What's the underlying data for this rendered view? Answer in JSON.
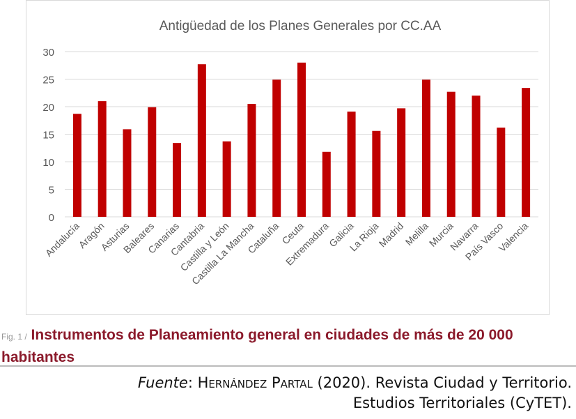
{
  "chart_data": {
    "type": "bar",
    "title": "Antigüedad de los Planes Generales por CC.AA",
    "categories": [
      "Andalucía",
      "Aragón",
      "Asturias",
      "Baleares",
      "Canarias",
      "Cantabria",
      "Castilla y León",
      "Castilla La Mancha",
      "Cataluña",
      "Ceuta",
      "Extremadura",
      "Galicia",
      "La Rioja",
      "Madrid",
      "Melilla",
      "Murcia",
      "Navarra",
      "País Vasco",
      "Valencia"
    ],
    "values": [
      18.7,
      21.0,
      15.9,
      19.9,
      13.4,
      27.7,
      13.7,
      20.5,
      24.9,
      28.0,
      11.8,
      19.1,
      15.6,
      19.7,
      24.9,
      22.7,
      22.0,
      16.2,
      23.4
    ],
    "ylim": [
      0,
      30
    ],
    "yticks": [
      0,
      5,
      10,
      15,
      20,
      25,
      30
    ],
    "xlabel": "",
    "ylabel": "",
    "grid": true,
    "bar_color": "#c00000"
  },
  "caption": {
    "fig": "Fig. 1 /",
    "text": "Instrumentos de Planeamiento general en ciudades de más de 20 000 habitantes"
  },
  "source": {
    "label": "Fuente",
    "author": "Hernández Partal",
    "line1": "(2020). Revista Ciudad y Territorio.",
    "line2": "Estudios Territoriales (CyTET)."
  }
}
